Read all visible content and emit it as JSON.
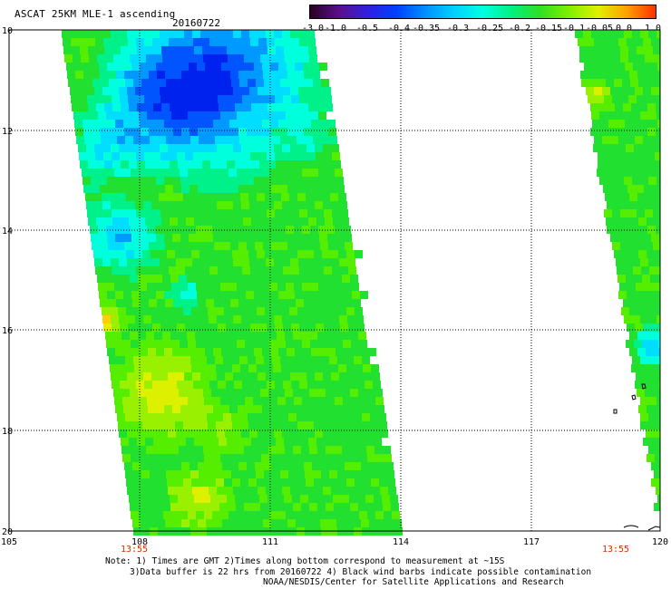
{
  "header": {
    "title": "ASCAT 25KM MLE-1 ascending",
    "date": "20160722"
  },
  "colorbar": {
    "labels": [
      "-3.0",
      "-1.0",
      "-0.5",
      "-0.4",
      "-0.35",
      "-0.3",
      "-0.25",
      "-0.2",
      "-0.15",
      "-0.1",
      "-0.05",
      "0.0",
      "1.0"
    ],
    "colors": [
      "#2a0020",
      "#5a0f8a",
      "#3020e0",
      "#0040ff",
      "#0090ff",
      "#00d0ff",
      "#00ffe0",
      "#00f080",
      "#30e020",
      "#80f000",
      "#e0f000",
      "#ffa000",
      "#ff3000"
    ]
  },
  "map": {
    "latitude_labels": [
      "10",
      "12",
      "14",
      "16",
      "18",
      "20"
    ],
    "longitude_labels": [
      "105",
      "108",
      "111",
      "114",
      "117",
      "120"
    ],
    "pass_times": [
      "13:55",
      "13:55"
    ],
    "pass_time_color": "#cc3300",
    "grid": "dotted"
  },
  "footer": {
    "note_line1": "Note: 1) Times are GMT 2)Times along bottom correspond to measurement at ~15S",
    "note_line2": "3)Data buffer is 22 hrs from 20160722 4) Black wind barbs indicate possible contamination",
    "credit": "NOAA/NESDIS/Center for Satellite Applications and Research"
  }
}
